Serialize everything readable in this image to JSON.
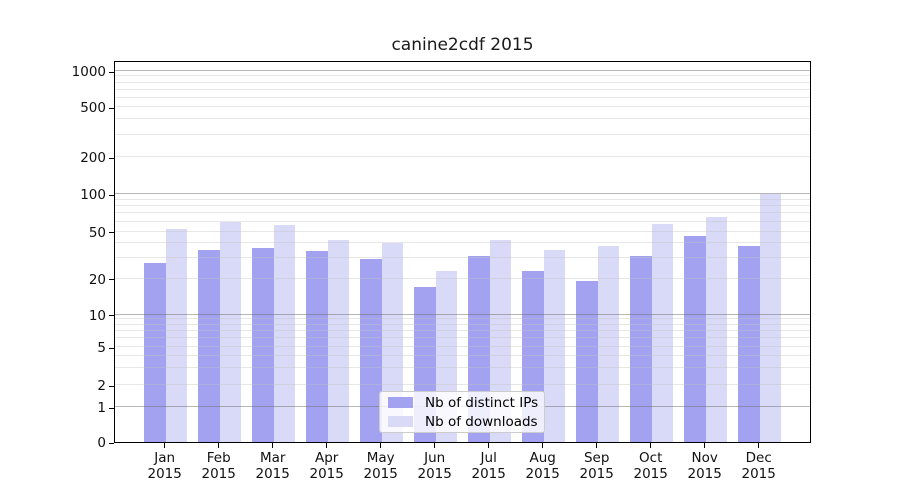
{
  "chart_data": {
    "type": "bar",
    "title": "canine2cdf 2015",
    "months": [
      "Jan",
      "Feb",
      "Mar",
      "Apr",
      "May",
      "Jun",
      "Jul",
      "Aug",
      "Sep",
      "Oct",
      "Nov",
      "Dec"
    ],
    "year": "2015",
    "series": [
      {
        "name": "Nb of distinct IPs",
        "color": "#a2a2f0",
        "values": [
          27,
          35,
          36,
          34,
          29,
          17,
          31,
          23,
          19,
          31,
          46,
          38
        ]
      },
      {
        "name": "Nb of downloads",
        "color": "#d9d9f8",
        "values": [
          52,
          60,
          56,
          42,
          40,
          23,
          42,
          35,
          38,
          58,
          65,
          101
        ]
      }
    ],
    "yscale": "symlog",
    "yticks": [
      0,
      1,
      2,
      5,
      10,
      20,
      50,
      100,
      200,
      500,
      1000
    ],
    "ylim": [
      0,
      1100
    ],
    "xlabel": "",
    "ylabel": "",
    "grid": true,
    "legend": {
      "entries": [
        "Nb of distinct IPs",
        "Nb of downloads"
      ],
      "position": "lower center"
    },
    "colors": {
      "distinct_ips": "#a2a2f0",
      "downloads": "#d9d9f8",
      "grid_major": "#b7b7b7",
      "grid_minor": "#e2e2e2",
      "spine": "#000000",
      "title_text": "#1a1a1a"
    }
  }
}
